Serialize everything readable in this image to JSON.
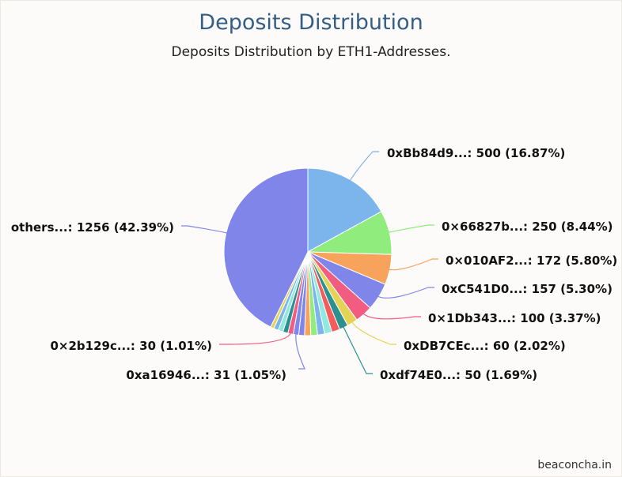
{
  "chart_data": {
    "type": "pie",
    "title": "Deposits Distribution",
    "subtitle": "Deposits Distribution by ETH1-Addresses.",
    "slices": [
      {
        "name": "0xBb84d9...",
        "value": 500,
        "percent": "16.87%",
        "color": "#7cb5ec",
        "label": "0xBb84d9...: 500 (16.87%)"
      },
      {
        "name": "0x66827b...",
        "value": 250,
        "percent": "8.44%",
        "color": "#90ed7d",
        "label": "0×66827b...: 250 (8.44%)"
      },
      {
        "name": "0x010AF2...",
        "value": 172,
        "percent": "5.80%",
        "color": "#f7a35c",
        "label": "0×010AF2...: 172 (5.80%)"
      },
      {
        "name": "0xC541D0...",
        "value": 157,
        "percent": "5.30%",
        "color": "#8085e9",
        "label": "0xC541D0...: 157 (5.30%)"
      },
      {
        "name": "0x1Db343...",
        "value": 100,
        "percent": "3.37%",
        "color": "#f15c80",
        "label": "0×1Db343...: 100 (3.37%)"
      },
      {
        "name": "0xDB7CEc...",
        "value": 60,
        "percent": "2.02%",
        "color": "#e4d354",
        "label": "0xDB7CEc...: 60 (2.02%)"
      },
      {
        "name": "0xdf74E0...",
        "value": 50,
        "percent": "1.69%",
        "color": "#2b908f",
        "label": "0xdf74E0...: 50 (1.69%)"
      },
      {
        "name": "",
        "value": 46,
        "color": "#f45b5b",
        "label": ""
      },
      {
        "name": "",
        "value": 42,
        "color": "#91e8e1",
        "label": ""
      },
      {
        "name": "",
        "value": 40,
        "color": "#7cb5ec",
        "label": ""
      },
      {
        "name": "",
        "value": 38,
        "color": "#90ed7d",
        "label": ""
      },
      {
        "name": "",
        "value": 35,
        "color": "#f7a35c",
        "label": ""
      },
      {
        "name": "",
        "value": 33,
        "color": "#8085e9",
        "label": ""
      },
      {
        "name": "0xa16946...",
        "value": 31,
        "percent": "1.05%",
        "color": "#8085e9",
        "label": "0xa16946...: 31 (1.05%)"
      },
      {
        "name": "0x2b129c...",
        "value": 30,
        "percent": "1.01%",
        "color": "#f15c80",
        "label": "0×2b129c...: 30 (1.01%)"
      },
      {
        "name": "",
        "value": 29,
        "color": "#2b908f",
        "label": ""
      },
      {
        "name": "",
        "value": 28,
        "color": "#91e8e1",
        "label": ""
      },
      {
        "name": "",
        "value": 26,
        "color": "#7cb5ec",
        "label": ""
      },
      {
        "name": "",
        "value": 20,
        "color": "#e4d354",
        "label": ""
      },
      {
        "name": "others...",
        "value": 1256,
        "percent": "42.39%",
        "color": "#8085e9",
        "label": "others...: 1256 (42.39%)"
      }
    ]
  },
  "credit": "beaconcha.in"
}
